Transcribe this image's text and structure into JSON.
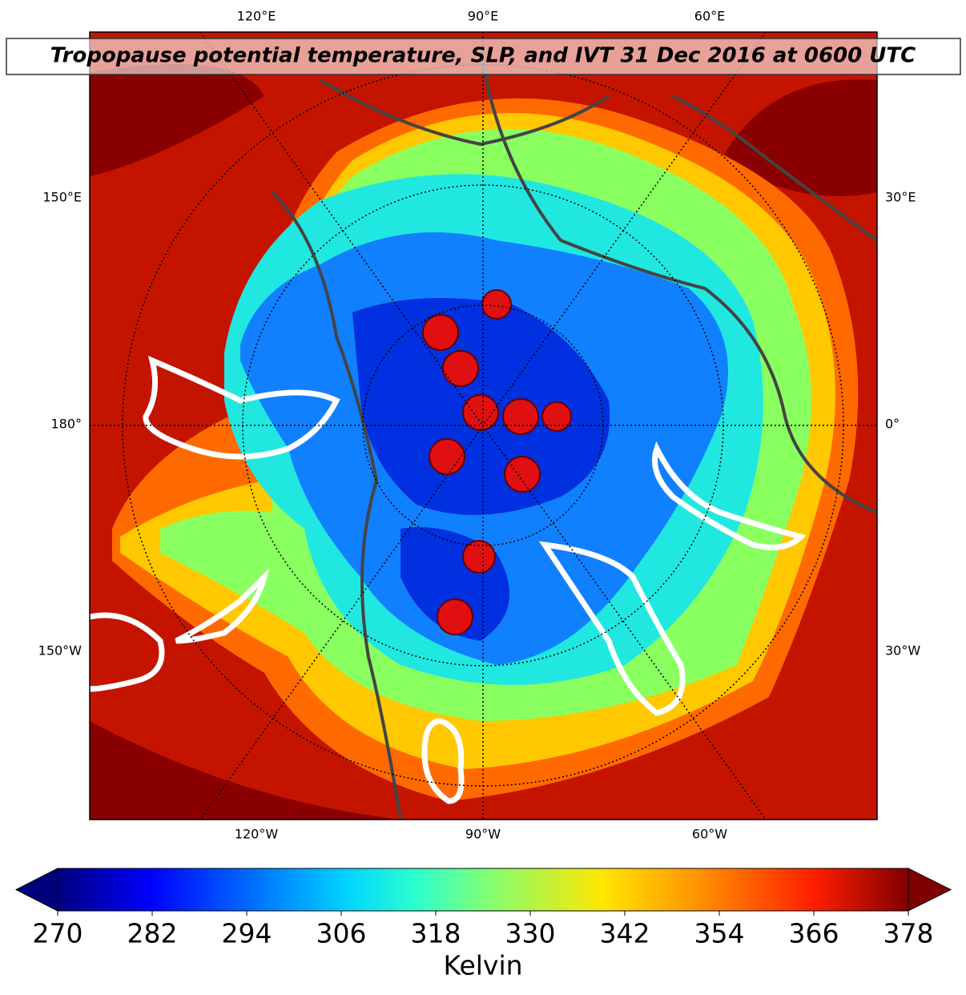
{
  "title": "Tropopause potential temperature, SLP, and IVT 31 Dec 2016 at 0600 UTC",
  "map": {
    "labels": {
      "top": [
        "120°E",
        "90°E",
        "60°E"
      ],
      "left": [
        "150°E",
        "180°",
        "150°W"
      ],
      "right": [
        "30°E",
        "0°",
        "30°W"
      ],
      "bottom": [
        "120°W",
        "90°W",
        "60°W"
      ]
    }
  },
  "colorbar": {
    "label": "Kelvin",
    "range": [
      270,
      378
    ],
    "ticks": [
      270,
      282,
      294,
      306,
      318,
      330,
      342,
      354,
      366,
      378
    ],
    "extend": "both"
  }
}
